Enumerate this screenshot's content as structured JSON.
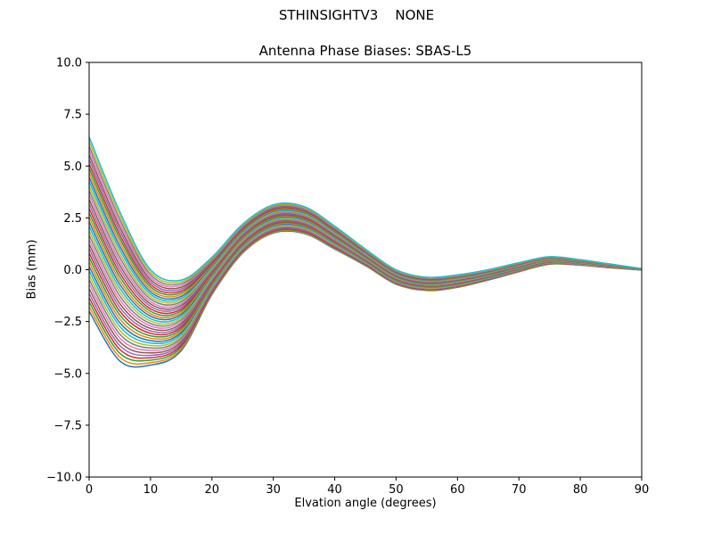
{
  "figure": {
    "suptitle": "STHINSIGHTV3    NONE"
  },
  "chart_data": {
    "type": "line",
    "title": "Antenna Phase Biases: SBAS-L5",
    "xlabel": "Elvation angle (degrees)",
    "ylabel": "Bias (mm)",
    "xlim": [
      0,
      90
    ],
    "ylim": [
      -10,
      10
    ],
    "grid": false,
    "legend": "none",
    "x_ticks": [
      0,
      10,
      20,
      30,
      40,
      50,
      60,
      70,
      80,
      90
    ],
    "y_tick_values": [
      10,
      7.5,
      5,
      2.5,
      0,
      -2.5,
      -5,
      -7.5,
      -10
    ],
    "y_tick_labels": [
      "10.0",
      "7.5",
      "5.0",
      "2.5",
      "0.0",
      "−2.5",
      "−5.0",
      "−7.5",
      "−10.0"
    ],
    "x": [
      0,
      5,
      10,
      15,
      20,
      25,
      30,
      35,
      40,
      45,
      50,
      55,
      60,
      65,
      70,
      75,
      80,
      85,
      90
    ],
    "base_values": [
      2.2,
      -0.8,
      -2.3,
      -2.2,
      -0.3,
      1.5,
      2.45,
      2.4,
      1.55,
      0.6,
      -0.35,
      -0.68,
      -0.55,
      -0.25,
      0.12,
      0.45,
      0.35,
      0.18,
      0.02
    ],
    "spread_values": [
      4.2,
      3.6,
      2.3,
      1.7,
      0.9,
      0.7,
      0.68,
      0.65,
      0.55,
      0.4,
      0.35,
      0.32,
      0.3,
      0.25,
      0.22,
      0.18,
      0.13,
      0.09,
      0.03
    ],
    "series_rule": "value[i] = base_values[i] + t * spread_values[i] for each antenna curve",
    "series": [
      {
        "t": -1.0,
        "color": "#1f77b4"
      },
      {
        "t": -0.949,
        "color": "#ff7f0e"
      },
      {
        "t": -0.897,
        "color": "#2ca02c"
      },
      {
        "t": -0.846,
        "color": "#d62728"
      },
      {
        "t": -0.795,
        "color": "#9467bd"
      },
      {
        "t": -0.744,
        "color": "#8c564b"
      },
      {
        "t": -0.692,
        "color": "#e377c2"
      },
      {
        "t": -0.641,
        "color": "#7f7f7f"
      },
      {
        "t": -0.59,
        "color": "#bcbd22"
      },
      {
        "t": -0.538,
        "color": "#17becf"
      },
      {
        "t": -0.487,
        "color": "#1f77b4"
      },
      {
        "t": -0.436,
        "color": "#ff7f0e"
      },
      {
        "t": -0.385,
        "color": "#2ca02c"
      },
      {
        "t": -0.333,
        "color": "#d62728"
      },
      {
        "t": -0.282,
        "color": "#9467bd"
      },
      {
        "t": -0.231,
        "color": "#8c564b"
      },
      {
        "t": -0.179,
        "color": "#e377c2"
      },
      {
        "t": -0.128,
        "color": "#7f7f7f"
      },
      {
        "t": -0.077,
        "color": "#bcbd22"
      },
      {
        "t": -0.026,
        "color": "#17becf"
      },
      {
        "t": 0.026,
        "color": "#1f77b4"
      },
      {
        "t": 0.077,
        "color": "#ff7f0e"
      },
      {
        "t": 0.128,
        "color": "#2ca02c"
      },
      {
        "t": 0.179,
        "color": "#d62728"
      },
      {
        "t": 0.231,
        "color": "#9467bd"
      },
      {
        "t": 0.282,
        "color": "#8c564b"
      },
      {
        "t": 0.333,
        "color": "#e377c2"
      },
      {
        "t": 0.385,
        "color": "#7f7f7f"
      },
      {
        "t": 0.436,
        "color": "#bcbd22"
      },
      {
        "t": 0.487,
        "color": "#17becf"
      },
      {
        "t": 0.538,
        "color": "#1f77b4"
      },
      {
        "t": 0.59,
        "color": "#ff7f0e"
      },
      {
        "t": 0.641,
        "color": "#2ca02c"
      },
      {
        "t": 0.692,
        "color": "#d62728"
      },
      {
        "t": 0.744,
        "color": "#9467bd"
      },
      {
        "t": 0.795,
        "color": "#8c564b"
      },
      {
        "t": 0.846,
        "color": "#e377c2"
      },
      {
        "t": 0.897,
        "color": "#7f7f7f"
      },
      {
        "t": 0.949,
        "color": "#bcbd22"
      },
      {
        "t": 1.0,
        "color": "#17becf"
      }
    ]
  }
}
